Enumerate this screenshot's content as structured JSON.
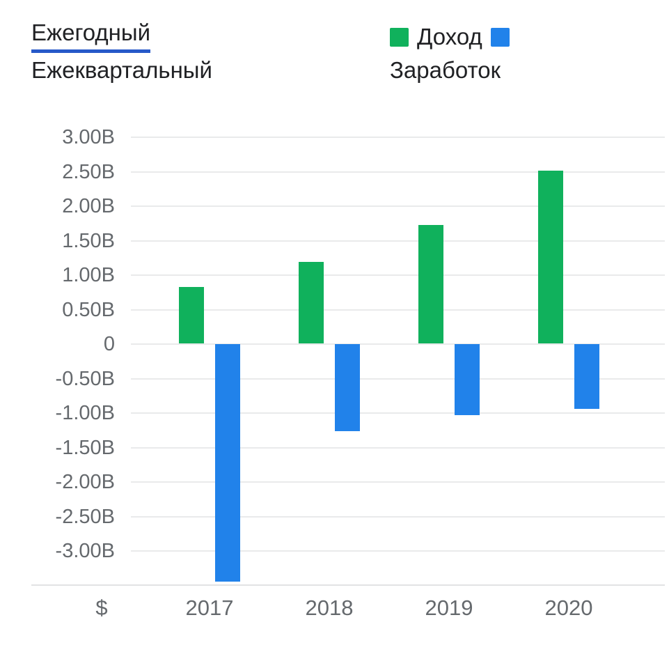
{
  "tabs": {
    "annual": "Ежегодный",
    "quarterly": "Ежеквартальный",
    "active": "annual"
  },
  "legend": [
    {
      "label": "Доход",
      "color": "#10b15c"
    },
    {
      "label": "Заработок",
      "color": "#2182ea"
    }
  ],
  "colors": {
    "accent_underline": "#2759c9",
    "revenue_green": "#10b15c",
    "earnings_blue": "#2182ea",
    "grid_line": "#e9eaeb",
    "axis_text": "#65696d",
    "header_text": "#202124"
  },
  "chart_data": {
    "type": "bar",
    "title": "",
    "xlabel": "",
    "ylabel": "",
    "currency_label": "$",
    "unit": "B",
    "categories": [
      "2017",
      "2018",
      "2019",
      "2020"
    ],
    "series": [
      {
        "name": "Доход",
        "color": "#10b15c",
        "values": [
          0.82,
          1.18,
          1.72,
          2.51
        ]
      },
      {
        "name": "Заработок",
        "color": "#2182ea",
        "values": [
          -3.44,
          -1.26,
          -1.03,
          -0.94
        ]
      }
    ],
    "y_ticks": [
      "3.00B",
      "2.50B",
      "2.00B",
      "1.50B",
      "1.00B",
      "0.50B",
      "0",
      "-0.50B",
      "-1.00B",
      "-1.50B",
      "-2.00B",
      "-2.50B",
      "-3.00B"
    ],
    "y_tick_values": [
      3,
      2.5,
      2,
      1.5,
      1,
      0.5,
      0,
      -0.5,
      -1,
      -1.5,
      -2,
      -2.5,
      -3
    ],
    "ylim": [
      -3.5,
      3.5
    ],
    "grid": true,
    "legend_position": "top-right"
  }
}
